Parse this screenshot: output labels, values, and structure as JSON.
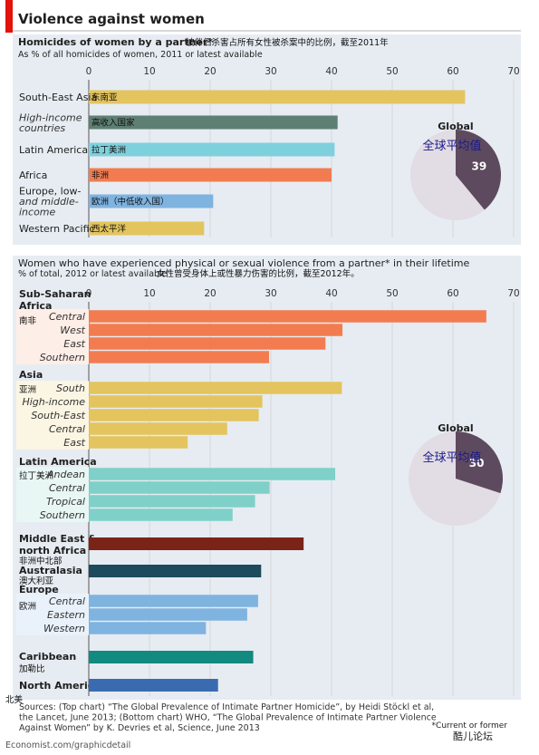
{
  "title": "Violence against women",
  "chart_data": [
    {
      "type": "bar",
      "title": "Homicides of women by a partner*",
      "title_cn": "被伴侣杀害占所有女性被杀案中的比例，截至2011年",
      "subtitle": "As % of all homicides of women, 2011 or latest available",
      "xlim": [
        0,
        70
      ],
      "ticks": [
        "0",
        "10",
        "20",
        "30",
        "40",
        "50",
        "60",
        "70"
      ],
      "tick_values": [
        0,
        10,
        20,
        30,
        40,
        50,
        60,
        70
      ],
      "rows": [
        {
          "label": "South-East Asia",
          "label_cn": "东南亚",
          "value": 62,
          "color": "#e3c45e",
          "italic": false
        },
        {
          "label": "High-income countries",
          "lines": [
            "High-income",
            "countries"
          ],
          "label_cn": "高收入国家",
          "value": 41,
          "color": "#5e7f74",
          "italic": true
        },
        {
          "label": "Latin America",
          "label_cn": "拉丁美洲",
          "value": 40.5,
          "color": "#7fd0dd",
          "italic": false
        },
        {
          "label": "Africa",
          "label_cn": "非洲",
          "value": 40,
          "color": "#f27c50",
          "italic": false
        },
        {
          "label": "Europe, low- and middle-income",
          "lines": [
            "Europe, low-",
            "and middle-",
            "income"
          ],
          "label_cn": "欧洲（中低收入国）",
          "value": 20.5,
          "color": "#7fb3e0",
          "italic": true
        },
        {
          "label": "Western Pacific",
          "label_cn": "西太平洋",
          "value": 19,
          "color": "#e3c45e",
          "italic": false
        }
      ],
      "pie": {
        "title": "Global",
        "title_cn": "全球平均值",
        "value": 39,
        "label": "39",
        "color_slice": "#5e4a5e",
        "color_rest": "#e2dce4"
      }
    },
    {
      "type": "bar",
      "title": "Women who have experienced physical or sexual violence from a partner* in their lifetime",
      "title_cn": "女性曾受身体上或性暴力伤害的比例，截至2012年。",
      "subtitle": "% of total, 2012 or latest available",
      "xlim": [
        0,
        70
      ],
      "ticks": [
        "0",
        "10",
        "20",
        "30",
        "40",
        "50",
        "60",
        "70"
      ],
      "tick_values": [
        0,
        10,
        20,
        30,
        40,
        50,
        60,
        70
      ],
      "groups": [
        {
          "name": "Sub-Saharan Africa",
          "lines": [
            "Sub-Saharan",
            "Africa"
          ],
          "name_cn": "南非",
          "color": "#f27c50",
          "bg": "#fdeee7",
          "rows": [
            {
              "label": "Central",
              "value": 65.5
            },
            {
              "label": "West",
              "value": 41.8
            },
            {
              "label": "East",
              "value": 39
            },
            {
              "label": "Southern",
              "value": 29.7
            }
          ]
        },
        {
          "name": "Asia",
          "lines": [
            "Asia"
          ],
          "name_cn": "亚洲",
          "color": "#e3c45e",
          "bg": "#fbf5e3",
          "rows": [
            {
              "label": "South",
              "value": 41.7
            },
            {
              "label": "High-income",
              "value": 28.6
            },
            {
              "label": "South-East",
              "value": 28
            },
            {
              "label": "Central",
              "value": 22.8
            },
            {
              "label": "East",
              "value": 16.3
            }
          ]
        },
        {
          "name": "Latin America",
          "lines": [
            "Latin America"
          ],
          "name_cn": "拉丁美洲",
          "color": "#7fd0c8",
          "bg": "#e8f6f4",
          "rows": [
            {
              "label": "Andean",
              "value": 40.6
            },
            {
              "label": "Central",
              "value": 29.8
            },
            {
              "label": "Tropical",
              "value": 27.4
            },
            {
              "label": "Southern",
              "value": 23.7
            }
          ]
        },
        {
          "name": "Middle East & north Africa",
          "lines": [
            "Middle East &",
            "north Africa"
          ],
          "name_cn": "非洲中北部",
          "color": "#7a2418",
          "bg": "",
          "rows": [
            {
              "label": "",
              "value": 35.4
            }
          ]
        },
        {
          "name": "Australasia",
          "lines": [
            "Australasia"
          ],
          "name_cn": "澳大利亚",
          "color": "#1d4a5c",
          "bg": "",
          "rows": [
            {
              "label": "",
              "value": 28.4
            }
          ]
        },
        {
          "name": "Europe",
          "lines": [
            "Europe"
          ],
          "name_cn": "欧洲",
          "color": "#7fb3e0",
          "bg": "#e9f2fa",
          "rows": [
            {
              "label": "Central",
              "value": 27.9
            },
            {
              "label": "Eastern",
              "value": 26.1
            },
            {
              "label": "Western",
              "value": 19.3
            }
          ]
        },
        {
          "name": "Caribbean",
          "lines": [
            "Caribbean"
          ],
          "name_cn": "加勒比",
          "color": "#128a80",
          "bg": "",
          "rows": [
            {
              "label": "",
              "value": 27.1
            }
          ]
        },
        {
          "name": "North America",
          "lines": [
            "North America"
          ],
          "name_cn": "北美",
          "color": "#3a6bb0",
          "bg": "",
          "rows": [
            {
              "label": "",
              "value": 21.3
            }
          ]
        }
      ],
      "pie": {
        "title": "Global",
        "title_cn": "全球平均值",
        "value": 30,
        "label": "30",
        "color_slice": "#5e4a5e",
        "color_rest": "#e2dce4"
      }
    }
  ],
  "sources": [
    "Sources: (Top chart) “The Global Prevalence of Intimate Partner Homicide”, by Heidi Stöckl et al,",
    "the Lancet, June 2013; (Bottom chart) WHO, “The Global Prevalence of Intimate Partner Violence",
    "Against Women” by K. Devries et al, Science, June 2013"
  ],
  "footnote": "*Current or former",
  "watermark": "酷儿论坛",
  "footer": "Economist.com/graphicdetail"
}
